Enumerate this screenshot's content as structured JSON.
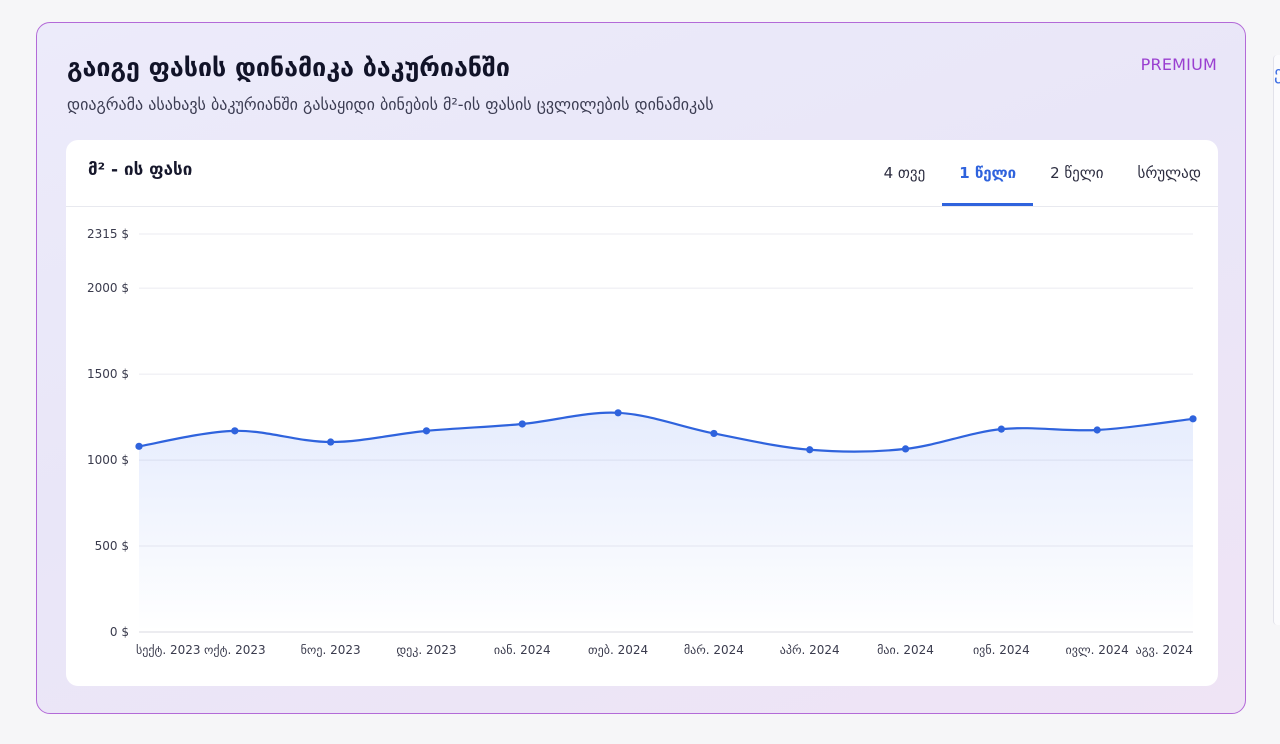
{
  "header": {
    "title": "გაიგე ფასის დინამიკა ბაკურიანში",
    "badge": "PREMIUM",
    "subtitle": "დიაგრამა ასახავს ბაკურიანში გასაყიდი ბინების მ²-ის ფასის ცვლილების დინამიკას"
  },
  "panel": {
    "title": "მ² - ის ფასი",
    "tabs": [
      {
        "label": "4 თვე",
        "active": false
      },
      {
        "label": "1 წელი",
        "active": true
      },
      {
        "label": "2 წელი",
        "active": false
      },
      {
        "label": "სრულად",
        "active": false
      }
    ]
  },
  "colors": {
    "accent": "#2f63dd",
    "premium": "#9a3fd0",
    "card_border": "#b36ad8"
  },
  "chart_data": {
    "type": "area",
    "title": "მ² - ის ფასი",
    "categories": [
      "სექტ. 2023",
      "ოქტ. 2023",
      "ნოე. 2023",
      "დეკ. 2023",
      "იან. 2024",
      "თებ. 2024",
      "მარ. 2024",
      "აპრ. 2024",
      "მაი. 2024",
      "ივნ. 2024",
      "ივლ. 2024",
      "აგვ. 2024"
    ],
    "series": [
      {
        "values": [
          1080,
          1170,
          1105,
          1170,
          1210,
          1275,
          1155,
          1060,
          1065,
          1180,
          1175,
          1240
        ]
      }
    ],
    "yticks": [
      0,
      500,
      1000,
      1500,
      2000,
      2315
    ],
    "ytick_labels": [
      "0 $",
      "500 $",
      "1000 $",
      "1500 $",
      "2000 $",
      "2315 $"
    ],
    "ylim": [
      0,
      2315
    ],
    "grid": true,
    "legend": "none"
  }
}
